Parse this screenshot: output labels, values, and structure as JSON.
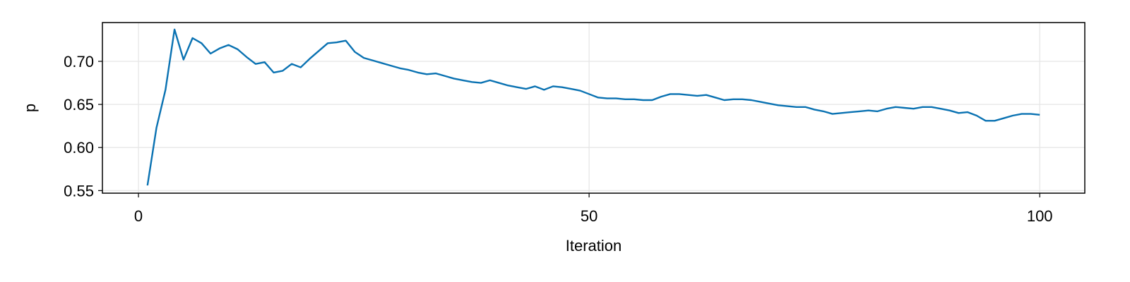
{
  "chart_data": {
    "type": "line",
    "title": "",
    "xlabel": "Iteration",
    "ylabel": "p",
    "xlim": [
      -4,
      105
    ],
    "ylim": [
      0.547,
      0.745
    ],
    "x_ticks": [
      0,
      50,
      100
    ],
    "x_tick_labels": [
      "0",
      "50",
      "100"
    ],
    "y_ticks": [
      0.55,
      0.6,
      0.65,
      0.7
    ],
    "y_tick_labels": [
      "0.55",
      "0.60",
      "0.65",
      "0.70"
    ],
    "grid": true,
    "legend": "none",
    "series": [
      {
        "color": "#0a72b2",
        "x": [
          1,
          2,
          3,
          4,
          5,
          6,
          7,
          8,
          9,
          10,
          11,
          12,
          13,
          14,
          15,
          16,
          17,
          18,
          19,
          20,
          21,
          22,
          23,
          24,
          25,
          26,
          27,
          28,
          29,
          30,
          31,
          32,
          33,
          34,
          35,
          36,
          37,
          38,
          39,
          40,
          41,
          42,
          43,
          44,
          45,
          46,
          47,
          48,
          49,
          50,
          51,
          52,
          53,
          54,
          55,
          56,
          57,
          58,
          59,
          60,
          61,
          62,
          63,
          64,
          65,
          66,
          67,
          68,
          69,
          70,
          71,
          72,
          73,
          74,
          75,
          76,
          77,
          78,
          79,
          80,
          81,
          82,
          83,
          84,
          85,
          86,
          87,
          88,
          89,
          90,
          91,
          92,
          93,
          94,
          95,
          96,
          97,
          98,
          99,
          100
        ],
        "values": [
          0.556,
          0.623,
          0.667,
          0.737,
          0.702,
          0.727,
          0.721,
          0.709,
          0.715,
          0.719,
          0.714,
          0.705,
          0.697,
          0.699,
          0.687,
          0.689,
          0.697,
          0.693,
          0.703,
          0.712,
          0.721,
          0.722,
          0.724,
          0.711,
          0.704,
          0.701,
          0.698,
          0.695,
          0.692,
          0.69,
          0.687,
          0.685,
          0.686,
          0.683,
          0.68,
          0.678,
          0.676,
          0.675,
          0.678,
          0.675,
          0.672,
          0.67,
          0.668,
          0.671,
          0.667,
          0.671,
          0.67,
          0.668,
          0.666,
          0.662,
          0.658,
          0.657,
          0.657,
          0.656,
          0.656,
          0.655,
          0.655,
          0.659,
          0.662,
          0.662,
          0.661,
          0.66,
          0.661,
          0.658,
          0.655,
          0.656,
          0.656,
          0.655,
          0.653,
          0.651,
          0.649,
          0.648,
          0.647,
          0.647,
          0.644,
          0.642,
          0.639,
          0.64,
          0.641,
          0.642,
          0.643,
          0.642,
          0.645,
          0.647,
          0.646,
          0.645,
          0.647,
          0.647,
          0.645,
          0.643,
          0.64,
          0.641,
          0.637,
          0.631,
          0.631,
          0.634,
          0.637,
          0.639,
          0.639,
          0.638
        ]
      }
    ]
  }
}
